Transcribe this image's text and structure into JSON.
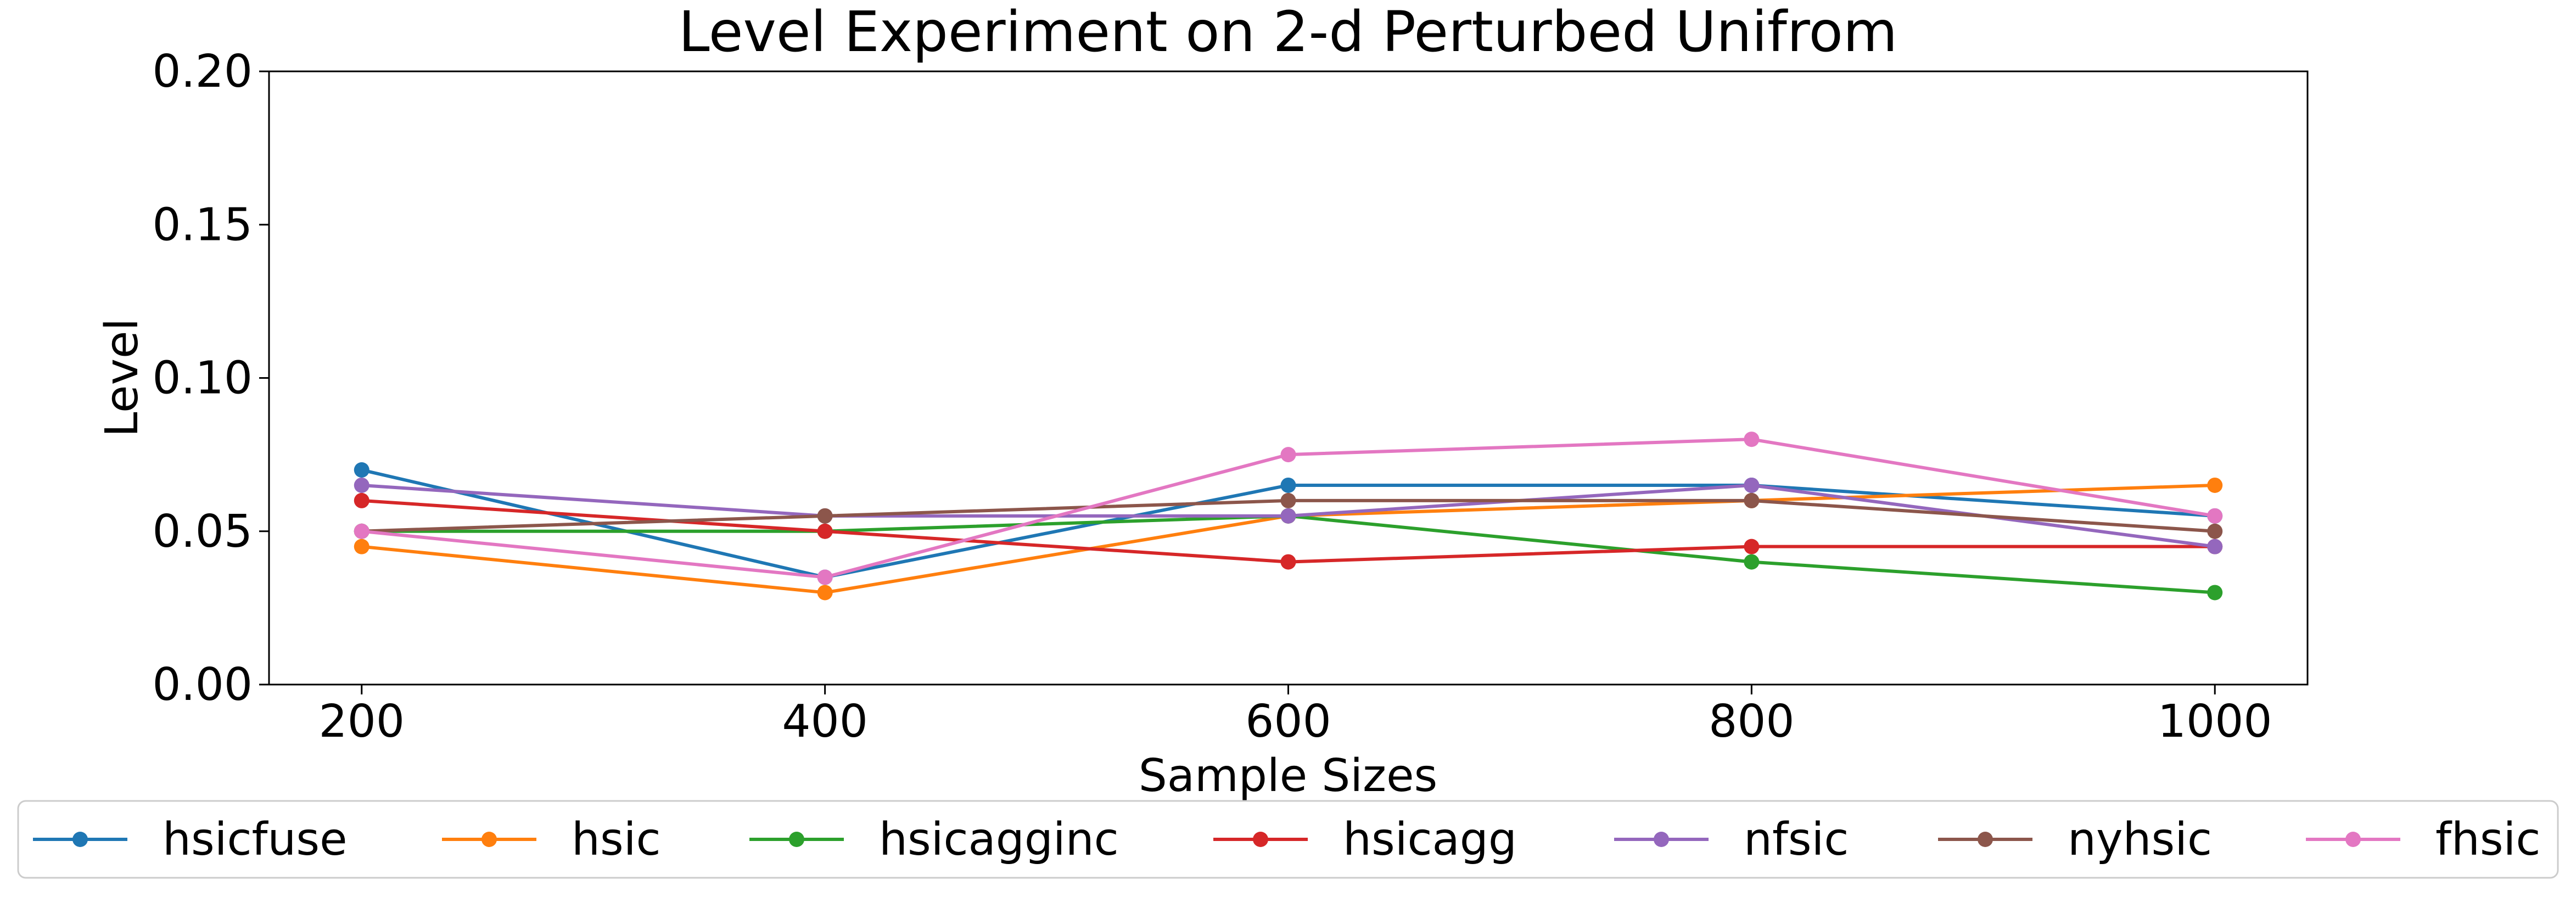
{
  "chart_data": {
    "type": "line",
    "title": "Level Experiment on 2-d Perturbed Unifrom",
    "xlabel": "Sample Sizes",
    "ylabel": "Level",
    "x": [
      200,
      400,
      600,
      800,
      1000
    ],
    "xticks": [
      "200",
      "400",
      "600",
      "800",
      "1000"
    ],
    "yticks": [
      "0.00",
      "0.05",
      "0.10",
      "0.15",
      "0.20"
    ],
    "xlim": [
      160,
      1040
    ],
    "ylim": [
      0,
      0.2
    ],
    "grid": false,
    "legend_position": "bottom",
    "series": [
      {
        "name": "hsicfuse",
        "color": "#1f77b4",
        "values": [
          0.07,
          0.035,
          0.065,
          0.065,
          0.055
        ]
      },
      {
        "name": "hsic",
        "color": "#ff7f0e",
        "values": [
          0.045,
          0.03,
          0.055,
          0.06,
          0.065
        ]
      },
      {
        "name": "hsicagginc",
        "color": "#2ca02c",
        "values": [
          0.05,
          0.05,
          0.055,
          0.04,
          0.03
        ]
      },
      {
        "name": "hsicagg",
        "color": "#d62728",
        "values": [
          0.06,
          0.05,
          0.04,
          0.045,
          0.045
        ]
      },
      {
        "name": "nfsic",
        "color": "#9467bd",
        "values": [
          0.065,
          0.055,
          0.055,
          0.065,
          0.045
        ]
      },
      {
        "name": "nyhsic",
        "color": "#8c564b",
        "values": [
          0.05,
          0.055,
          0.06,
          0.06,
          0.05
        ]
      },
      {
        "name": "fhsic",
        "color": "#e377c2",
        "values": [
          0.05,
          0.035,
          0.075,
          0.08,
          0.055
        ]
      }
    ]
  }
}
